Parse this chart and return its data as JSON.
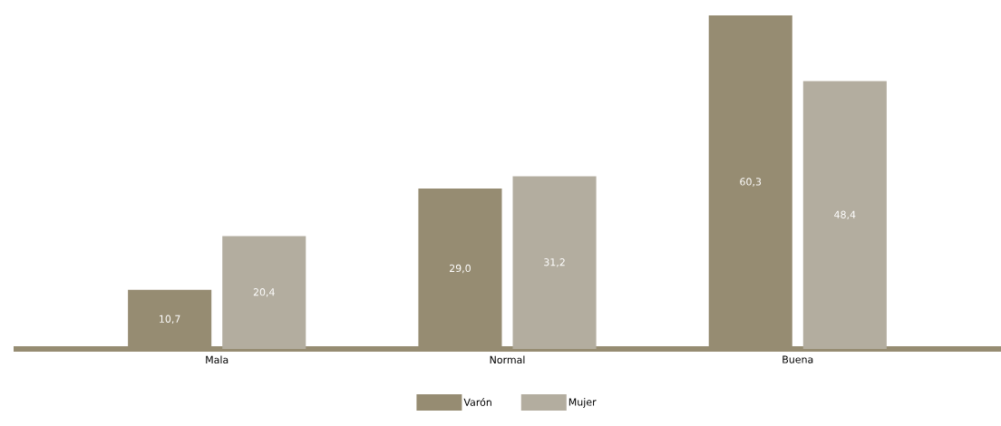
{
  "chart_data": {
    "type": "bar",
    "categories": [
      "Mala",
      "Normal",
      "Buena"
    ],
    "series": [
      {
        "name": "Varón",
        "color": "#968c72",
        "values": [
          10.7,
          29.0,
          60.3
        ],
        "value_labels": [
          "10,7",
          "29,0",
          "60,3"
        ]
      },
      {
        "name": "Mujer",
        "color": "#b3ad9f",
        "values": [
          20.4,
          31.2,
          48.4
        ],
        "value_labels": [
          "20,4",
          "31,2",
          "48,4"
        ]
      }
    ],
    "ylim": [
      0,
      60.3
    ],
    "legend": "bottom"
  }
}
